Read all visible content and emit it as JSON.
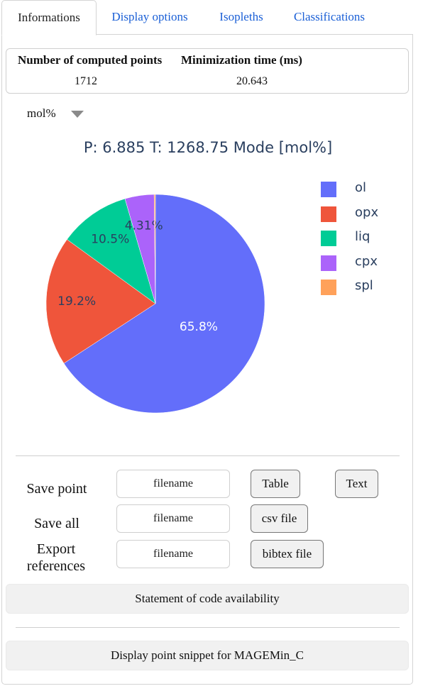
{
  "tabs": [
    "Informations",
    "Display options",
    "Isopleths",
    "Classifications"
  ],
  "info": {
    "headers": [
      "Number of computed points",
      "Minimization time (ms)"
    ],
    "values": [
      "1712",
      "20.643"
    ]
  },
  "unit_selector": {
    "value": "mol%"
  },
  "chart_data": {
    "type": "pie",
    "title": "P: 6.885 T: 1268.75 Mode [mol%]",
    "labels": [
      "ol",
      "opx",
      "liq",
      "cpx",
      "spl"
    ],
    "values": [
      65.8,
      19.2,
      10.5,
      4.31,
      0.19
    ],
    "value_labels": [
      "65.8%",
      "19.2%",
      "10.5%",
      "4.31%",
      ""
    ],
    "colors": [
      "#636efa",
      "#ef553b",
      "#00cc96",
      "#ab63fa",
      "#ffa15a"
    ],
    "slice_order": "ol starts at top going clockwise",
    "legend_position": "right"
  },
  "export": {
    "save_point_label": "Save point",
    "save_all_label": "Save all",
    "export_refs_label": "Export references",
    "filename_placeholder": "filename",
    "table_btn": "Table",
    "text_btn": "Text",
    "csv_btn": "csv file",
    "bibtex_btn": "bibtex file"
  },
  "code_availability_btn": "Statement of code availability",
  "snippet_btn": "Display point snippet for MAGEMin_C"
}
